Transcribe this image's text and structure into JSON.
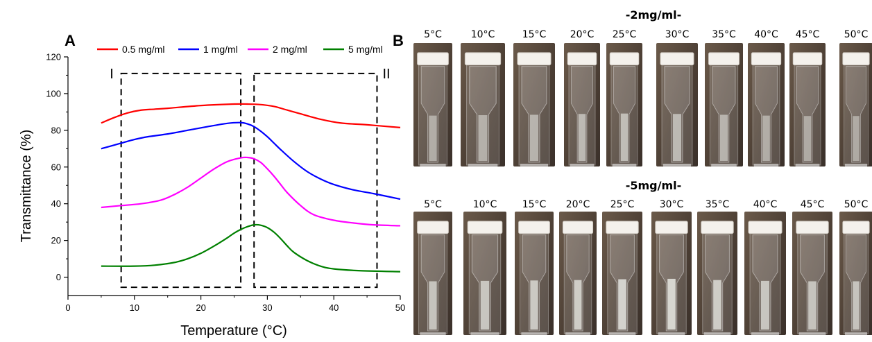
{
  "panel_a": {
    "letter": "A",
    "chart_data": {
      "type": "line",
      "xlabel": "Temperature (°C)",
      "ylabel": "Transmittance (%)",
      "xlim": [
        0,
        50
      ],
      "ylim": [
        -10,
        120
      ],
      "xticks": [
        0,
        10,
        20,
        30,
        40,
        50
      ],
      "yticks": [
        0,
        20,
        40,
        60,
        80,
        100,
        120
      ],
      "grid": false,
      "legend_position": "top",
      "region_labels": [
        "I",
        "II"
      ],
      "series": [
        {
          "name": "0.5 mg/ml",
          "color": "#ff0000",
          "x": [
            5,
            7,
            9,
            11,
            13,
            15,
            20,
            25,
            27,
            29,
            31,
            33,
            35,
            38,
            41,
            45,
            50
          ],
          "y": [
            84,
            87,
            89.5,
            91,
            91.5,
            92,
            93.5,
            94.3,
            94.3,
            94,
            93,
            91,
            89,
            86,
            84,
            83,
            81.5
          ]
        },
        {
          "name": "1 mg/ml",
          "color": "#0000ff",
          "x": [
            5,
            8,
            10,
            12,
            15,
            18,
            21,
            24,
            26,
            27,
            28,
            29,
            30,
            31,
            32,
            34,
            36,
            38,
            40,
            43,
            46,
            50
          ],
          "y": [
            70,
            73,
            75,
            76.5,
            78,
            80,
            82,
            83.8,
            84.2,
            83.5,
            82,
            79.5,
            76.5,
            73,
            69.5,
            63,
            57.5,
            53.5,
            50.5,
            47.5,
            45.5,
            42.5
          ]
        },
        {
          "name": "2 mg/ml",
          "color": "#ff00ff",
          "x": [
            5,
            8,
            11,
            14,
            16,
            18,
            20,
            22,
            24,
            26,
            27,
            28,
            29,
            30,
            31,
            32,
            33,
            35,
            37,
            40,
            43,
            46,
            50
          ],
          "y": [
            38,
            39,
            40,
            42,
            45,
            49,
            54,
            59,
            63,
            65,
            65.2,
            64.5,
            62.5,
            59,
            55,
            50.5,
            46,
            39,
            34,
            31,
            29.5,
            28.5,
            28
          ]
        },
        {
          "name": "5 mg/ml",
          "color": "#008000",
          "x": [
            5,
            10,
            13,
            16,
            18,
            20,
            22,
            24,
            25,
            26,
            27,
            28,
            29,
            30,
            31,
            32,
            33,
            34,
            36,
            38,
            40,
            44,
            50
          ],
          "y": [
            6,
            6,
            6.5,
            8,
            10,
            13,
            17,
            21.5,
            24,
            26,
            27.5,
            28.5,
            28.3,
            27,
            24.5,
            21,
            17,
            13.5,
            9,
            6,
            4.5,
            3.5,
            3
          ]
        }
      ],
      "dashed_boxes": [
        {
          "x": [
            8,
            26
          ],
          "y": [
            -5.5,
            111
          ]
        },
        {
          "x": [
            28,
            46.5
          ],
          "y": [
            -5.5,
            111
          ]
        }
      ]
    }
  },
  "panel_b": {
    "letter": "B",
    "groups": [
      {
        "title": "-2mg/ml-",
        "labels": [
          "5°C",
          "10°C",
          "15°C",
          "20°C",
          "25°C",
          "30°C",
          "35°C",
          "40°C",
          "45°C",
          "50°C"
        ],
        "turbidity": [
          0.35,
          0.4,
          0.45,
          0.55,
          0.6,
          0.55,
          0.45,
          0.35,
          0.3,
          0.3
        ]
      },
      {
        "title": "-5mg/ml-",
        "labels": [
          "5°C",
          "10°C",
          "15°C",
          "20°C",
          "25°C",
          "30°C",
          "35°C",
          "40°C",
          "45°C",
          "50°C"
        ],
        "turbidity": [
          0.7,
          0.75,
          0.8,
          0.85,
          0.95,
          1.0,
          0.85,
          0.75,
          0.7,
          0.7
        ]
      }
    ]
  }
}
